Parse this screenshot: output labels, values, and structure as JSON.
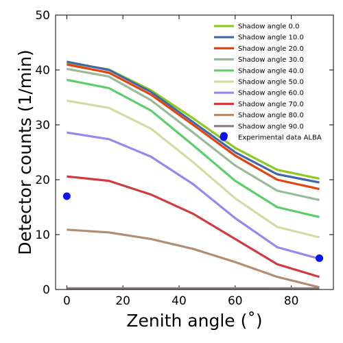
{
  "chart_data": {
    "type": "line",
    "title": "",
    "xlabel": "Zenith angle (˚)",
    "ylabel": "Detector counts (1/min)",
    "xlim": [
      -4,
      95
    ],
    "ylim": [
      0,
      50
    ],
    "xticks": [
      0,
      20,
      40,
      60,
      80
    ],
    "yticks": [
      0,
      10,
      20,
      30,
      40,
      50
    ],
    "grid": false,
    "legend_position": "top-right",
    "x": [
      0,
      15,
      30,
      45,
      60,
      75,
      90
    ],
    "series": [
      {
        "name": "Shadow angle 0.0",
        "color": "#8ec920",
        "values": [
          41.3,
          40.1,
          36.3,
          31.2,
          25.8,
          21.8,
          20.2
        ]
      },
      {
        "name": "Shadow angle 10.0",
        "color": "#3f68a8",
        "values": [
          41.5,
          40.0,
          36.0,
          30.5,
          25.0,
          21.0,
          19.5
        ]
      },
      {
        "name": "Shadow angle 20.0",
        "color": "#e6420d",
        "values": [
          41.0,
          39.5,
          35.5,
          30.0,
          24.4,
          20.0,
          18.3
        ]
      },
      {
        "name": "Shadow angle 30.0",
        "color": "#97bb97",
        "values": [
          40.2,
          38.8,
          34.5,
          28.6,
          22.6,
          18.0,
          16.3
        ]
      },
      {
        "name": "Shadow angle 40.0",
        "color": "#5cce69",
        "values": [
          38.2,
          36.7,
          32.6,
          26.3,
          19.8,
          15.0,
          13.2
        ]
      },
      {
        "name": "Shadow angle 50.0",
        "color": "#d5d9a2",
        "values": [
          34.4,
          33.1,
          29.3,
          23.2,
          16.6,
          11.4,
          9.5
        ]
      },
      {
        "name": "Shadow angle 60.0",
        "color": "#9b85ee",
        "values": [
          28.6,
          27.4,
          24.2,
          19.2,
          13.0,
          7.7,
          5.6
        ]
      },
      {
        "name": "Shadow angle 70.0",
        "color": "#d13b3e",
        "values": [
          20.6,
          19.8,
          17.3,
          13.8,
          9.2,
          4.6,
          2.3
        ]
      },
      {
        "name": "Shadow angle 80.0",
        "color": "#b28d70",
        "values": [
          10.9,
          10.4,
          9.2,
          7.4,
          5.0,
          2.3,
          0.4
        ]
      },
      {
        "name": "Shadow angle 90.0",
        "color": "#8c7a80",
        "values": [
          0.2,
          0.2,
          0.2,
          0.2,
          0.2,
          0.2,
          0.2
        ]
      }
    ],
    "scatter": {
      "name": "Experimental data ALBA",
      "color": "#0a14f0",
      "points": [
        {
          "x": 0,
          "y": 17.0
        },
        {
          "x": 56,
          "y": 28.0
        },
        {
          "x": 90,
          "y": 5.7
        }
      ]
    }
  }
}
